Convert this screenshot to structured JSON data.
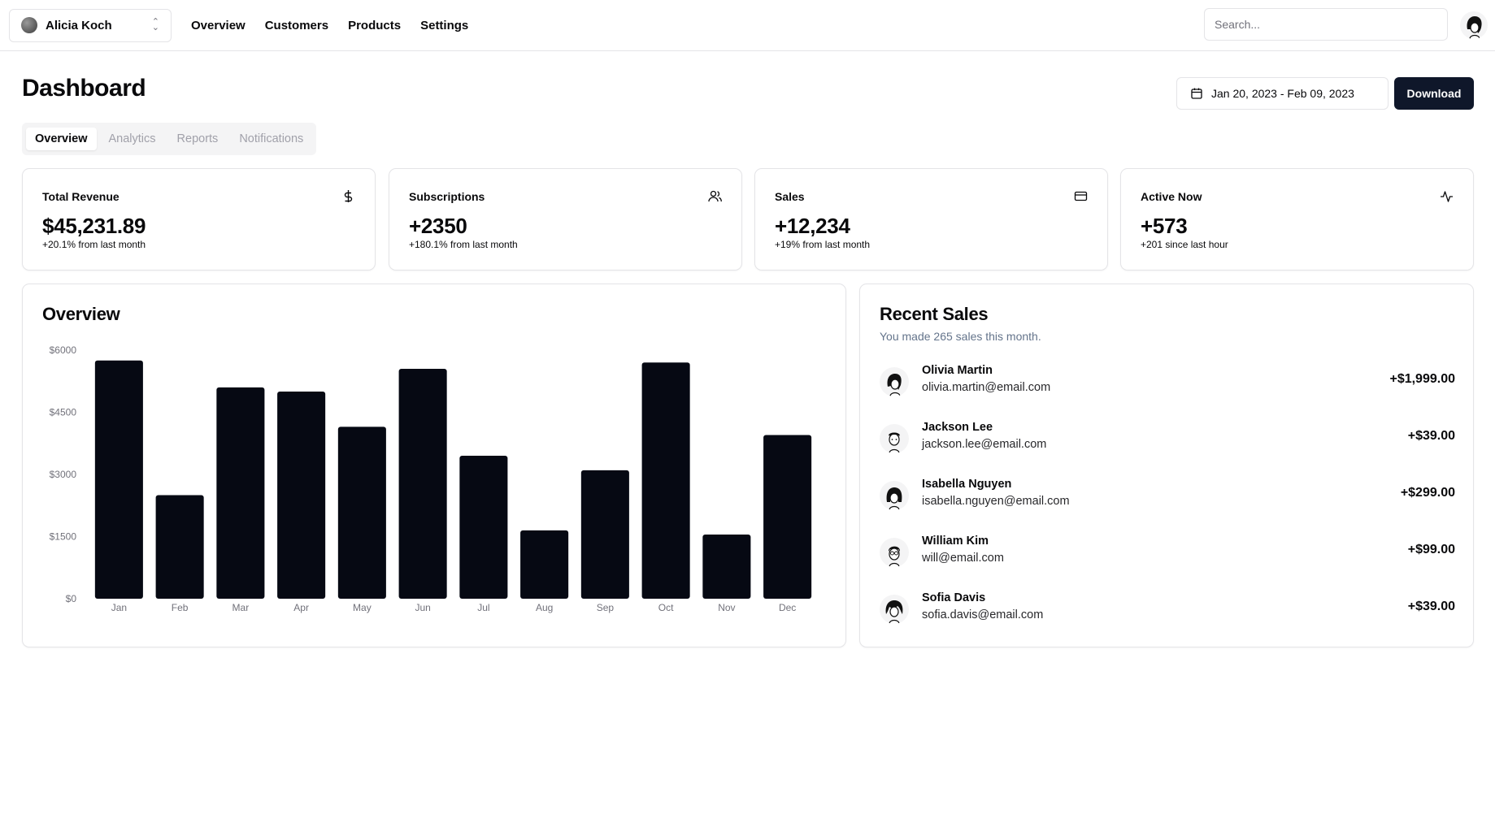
{
  "topbar": {
    "team_name": "Alicia Koch",
    "nav": [
      "Overview",
      "Customers",
      "Products",
      "Settings"
    ],
    "search_placeholder": "Search..."
  },
  "page": {
    "title": "Dashboard",
    "date_range": "Jan 20, 2023 - Feb 09, 2023",
    "download_label": "Download",
    "tabs": [
      "Overview",
      "Analytics",
      "Reports",
      "Notifications"
    ],
    "active_tab": "Overview"
  },
  "stats": [
    {
      "label": "Total Revenue",
      "value": "$45,231.89",
      "sub": "+20.1% from last month",
      "icon": "dollar-icon"
    },
    {
      "label": "Subscriptions",
      "value": "+2350",
      "sub": "+180.1% from last month",
      "icon": "users-icon"
    },
    {
      "label": "Sales",
      "value": "+12,234",
      "sub": "+19% from last month",
      "icon": "credit-card-icon"
    },
    {
      "label": "Active Now",
      "value": "+573",
      "sub": "+201 since last hour",
      "icon": "activity-icon"
    }
  ],
  "overview": {
    "title": "Overview"
  },
  "chart_data": {
    "type": "bar",
    "categories": [
      "Jan",
      "Feb",
      "Mar",
      "Apr",
      "May",
      "Jun",
      "Jul",
      "Aug",
      "Sep",
      "Oct",
      "Nov",
      "Dec"
    ],
    "values": [
      5750,
      2500,
      5100,
      5000,
      4150,
      5550,
      3450,
      1650,
      3100,
      5700,
      1550,
      3950
    ],
    "yticks": [
      "$0",
      "$1500",
      "$3000",
      "$4500",
      "$6000"
    ],
    "ylim": [
      0,
      6000
    ],
    "bar_color": "#060913",
    "grid": false
  },
  "recent_sales": {
    "title": "Recent Sales",
    "subtitle": "You made 265 sales this month.",
    "items": [
      {
        "name": "Olivia Martin",
        "email": "olivia.martin@email.com",
        "amount": "+$1,999.00"
      },
      {
        "name": "Jackson Lee",
        "email": "jackson.lee@email.com",
        "amount": "+$39.00"
      },
      {
        "name": "Isabella Nguyen",
        "email": "isabella.nguyen@email.com",
        "amount": "+$299.00"
      },
      {
        "name": "William Kim",
        "email": "will@email.com",
        "amount": "+$99.00"
      },
      {
        "name": "Sofia Davis",
        "email": "sofia.davis@email.com",
        "amount": "+$39.00"
      }
    ]
  },
  "colors": {
    "primary": "#0f172a",
    "border": "#e4e4e7",
    "muted_text": "#71717a"
  }
}
